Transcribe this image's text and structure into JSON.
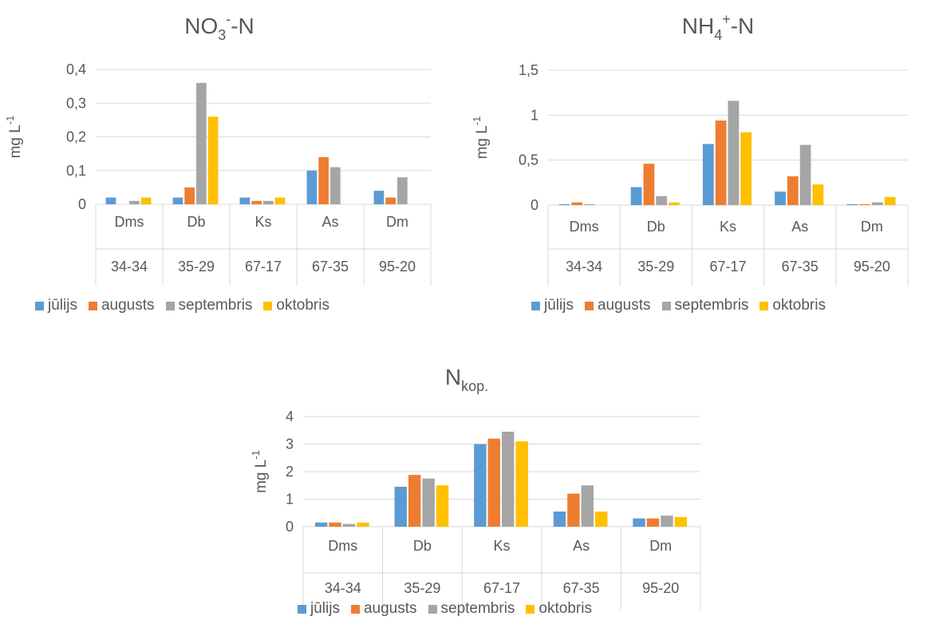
{
  "legend": [
    "jūlijs",
    "augusts",
    "septembris",
    "oktobris"
  ],
  "colors": [
    "#5B9BD5",
    "#ED7D31",
    "#A5A5A5",
    "#FFC000"
  ],
  "chart_data": [
    {
      "type": "bar",
      "title_main": "NO",
      "title_sub": "3",
      "title_sup": "-",
      "title_tail": "-N",
      "ylabel": "mg L",
      "ylabel_sup": "-1",
      "categories": [
        "Dms",
        "Db",
        "Ks",
        "As",
        "Dm"
      ],
      "categories_row2": [
        "34-34",
        "35-29",
        "67-17",
        "67-35",
        "95-20"
      ],
      "ylim": [
        0,
        0.4
      ],
      "yticks": [
        "0",
        "0,1",
        "0,2",
        "0,3",
        "0,4"
      ],
      "series": [
        {
          "name": "jūlijs",
          "values": [
            0.02,
            0.02,
            0.02,
            0.1,
            0.04
          ]
        },
        {
          "name": "augusts",
          "values": [
            0.0,
            0.05,
            0.01,
            0.14,
            0.02
          ]
        },
        {
          "name": "septembris",
          "values": [
            0.01,
            0.36,
            0.01,
            0.11,
            0.08
          ]
        },
        {
          "name": "oktobris",
          "values": [
            0.02,
            0.26,
            0.02,
            0.0,
            0.0
          ]
        }
      ]
    },
    {
      "type": "bar",
      "title_main": "NH",
      "title_sub": "4",
      "title_sup": "+",
      "title_tail": "-N",
      "ylabel": "mg L",
      "ylabel_sup": "-1",
      "categories": [
        "Dms",
        "Db",
        "Ks",
        "As",
        "Dm"
      ],
      "categories_row2": [
        "34-34",
        "35-29",
        "67-17",
        "67-35",
        "95-20"
      ],
      "ylim": [
        0,
        1.5
      ],
      "yticks": [
        "0",
        "0,5",
        "1",
        "1,5"
      ],
      "series": [
        {
          "name": "jūlijs",
          "values": [
            0.01,
            0.2,
            0.68,
            0.15,
            0.01
          ]
        },
        {
          "name": "augusts",
          "values": [
            0.03,
            0.46,
            0.94,
            0.32,
            0.01
          ]
        },
        {
          "name": "septembris",
          "values": [
            0.01,
            0.1,
            1.16,
            0.67,
            0.03
          ]
        },
        {
          "name": "oktobris",
          "values": [
            0.0,
            0.03,
            0.81,
            0.23,
            0.09
          ]
        }
      ]
    },
    {
      "type": "bar",
      "title_main": "N",
      "title_sub": "kop.",
      "title_sup": "",
      "title_tail": "",
      "ylabel": "mg L",
      "ylabel_sup": "-1",
      "categories": [
        "Dms",
        "Db",
        "Ks",
        "As",
        "Dm"
      ],
      "categories_row2": [
        "34-34",
        "35-29",
        "67-17",
        "67-35",
        "95-20"
      ],
      "ylim": [
        0,
        4
      ],
      "yticks": [
        "0",
        "1",
        "2",
        "3",
        "4"
      ],
      "series": [
        {
          "name": "jūlijs",
          "values": [
            0.15,
            1.45,
            3.0,
            0.55,
            0.3
          ]
        },
        {
          "name": "augusts",
          "values": [
            0.15,
            1.88,
            3.2,
            1.2,
            0.3
          ]
        },
        {
          "name": "septembris",
          "values": [
            0.1,
            1.75,
            3.45,
            1.5,
            0.4
          ]
        },
        {
          "name": "oktobris",
          "values": [
            0.15,
            1.5,
            3.1,
            0.55,
            0.35
          ]
        }
      ]
    }
  ]
}
